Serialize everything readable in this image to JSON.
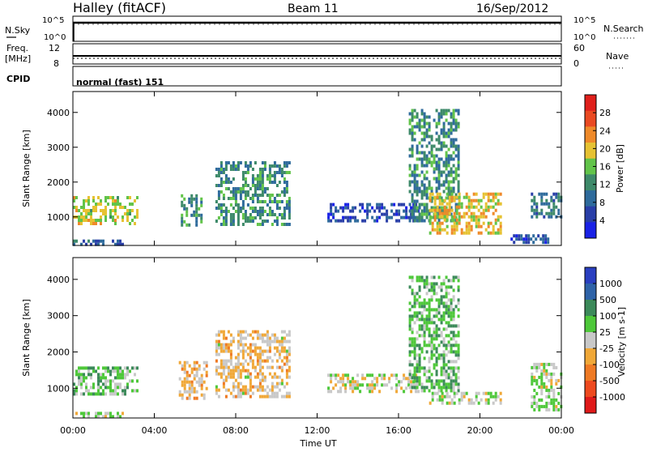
{
  "header": {
    "left_title": "Halley (fitACF)",
    "center_title": "Beam 11",
    "right_title": "16/Sep/2012"
  },
  "colors": {
    "frame": "#000000",
    "power_scale": [
      "#1a22e6",
      "#2a3fa8",
      "#2f6b9c",
      "#3e8a6a",
      "#62c44a",
      "#e6c233",
      "#ef8a2a",
      "#ea4a22",
      "#e0201c"
    ],
    "velocity_scale": [
      "#e01a1a",
      "#ee4a1f",
      "#ef7a24",
      "#f0a838",
      "#c8c8c8",
      "#4ec83a",
      "#3c8a5a",
      "#2f63a8",
      "#2a3fc0"
    ]
  },
  "strips": {
    "nsky": {
      "left_label": "N.Sky",
      "right_label": "N.Search",
      "left_ticks": [
        "10^5",
        "10^0"
      ],
      "right_ticks": [
        "10^5",
        "10^0"
      ]
    },
    "freq": {
      "left_label_1": "Freq.",
      "left_label_2": "[MHz]",
      "right_label": "Nave",
      "left_ticks": [
        "12",
        "8"
      ],
      "right_ticks": [
        "60",
        "0"
      ]
    },
    "cpid": {
      "left_label": "CPID",
      "text": "normal (fast) 151"
    }
  },
  "axes": {
    "ylabel": "Slant Range [km]",
    "xlabel": "Time UT",
    "x_ticks": [
      "00:00",
      "04:00",
      "08:00",
      "12:00",
      "16:00",
      "20:00",
      "00:00"
    ],
    "y_ticks": [
      "1000",
      "2000",
      "3000",
      "4000"
    ]
  },
  "chart_data": [
    {
      "type": "heatmap",
      "name": "power",
      "x_range_hours": [
        0,
        24
      ],
      "y_range_km": [
        180,
        4600
      ],
      "colorbar": {
        "label": "Power [dB]",
        "ticks": [
          "28",
          "24",
          "20",
          "16",
          "12",
          "8",
          "4"
        ],
        "range": [
          0,
          32
        ]
      },
      "regions": [
        {
          "t0": 0.0,
          "t1": 3.2,
          "r0": 800,
          "r1": 1600,
          "level": 18
        },
        {
          "t0": 0.0,
          "t1": 2.5,
          "r0": 250,
          "r1": 350,
          "level": 8
        },
        {
          "t0": 5.3,
          "t1": 6.3,
          "r0": 750,
          "r1": 1650,
          "level": 12
        },
        {
          "t0": 7.0,
          "t1": 10.7,
          "r0": 800,
          "r1": 2600,
          "level": 12
        },
        {
          "t0": 12.5,
          "t1": 17.0,
          "r0": 900,
          "r1": 1400,
          "level": 6
        },
        {
          "t0": 16.5,
          "t1": 19.0,
          "r0": 900,
          "r1": 4100,
          "level": 12
        },
        {
          "t0": 17.5,
          "t1": 21.0,
          "r0": 550,
          "r1": 1700,
          "level": 20
        },
        {
          "t0": 21.5,
          "t1": 23.3,
          "r0": 300,
          "r1": 500,
          "level": 6
        },
        {
          "t0": 22.5,
          "t1": 24.0,
          "r0": 1000,
          "r1": 1700,
          "level": 10
        }
      ]
    },
    {
      "type": "heatmap",
      "name": "velocity",
      "x_range_hours": [
        0,
        24
      ],
      "y_range_km": [
        180,
        4600
      ],
      "colorbar": {
        "label": "Velocity [m s-1]",
        "ticks": [
          "1000",
          "500",
          "100",
          "25",
          "-25",
          "-100",
          "-500",
          "-1000"
        ],
        "range": [
          -1200,
          1200
        ]
      },
      "regions": [
        {
          "t0": 0.0,
          "t1": 3.2,
          "r0": 800,
          "r1": 1600,
          "level": 200
        },
        {
          "t0": 0.0,
          "t1": 2.5,
          "r0": 250,
          "r1": 350,
          "level": 50
        },
        {
          "t0": 5.2,
          "t1": 6.6,
          "r0": 700,
          "r1": 1750,
          "level": -200
        },
        {
          "t0": 7.0,
          "t1": 10.7,
          "r0": 800,
          "r1": 2600,
          "level": -150
        },
        {
          "t0": 12.5,
          "t1": 17.0,
          "r0": 900,
          "r1": 1400,
          "level": 0
        },
        {
          "t0": 16.5,
          "t1": 19.0,
          "r0": 900,
          "r1": 4100,
          "level": 300
        },
        {
          "t0": 17.5,
          "t1": 21.0,
          "r0": 550,
          "r1": 900,
          "level": 60
        },
        {
          "t0": 22.5,
          "t1": 24.0,
          "r0": 400,
          "r1": 1700,
          "level": 100
        }
      ]
    }
  ]
}
